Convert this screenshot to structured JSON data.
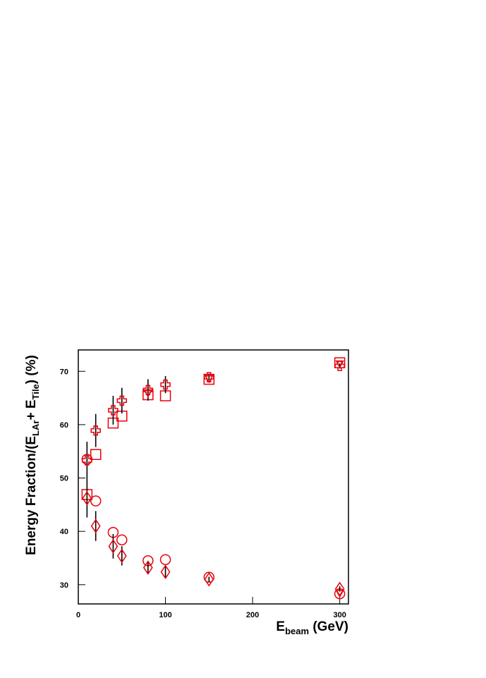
{
  "chart_data": {
    "type": "scatter",
    "xlabel": [
      "E",
      "beam",
      " (GeV)"
    ],
    "ylabel": [
      "Energy Fraction/(E",
      "LAr",
      "+ E",
      "Tile",
      ") (%)"
    ],
    "xlim": [
      0,
      310
    ],
    "ylim": [
      26.4,
      74
    ],
    "xticks": [
      0,
      100,
      200,
      300
    ],
    "yticks": [
      30,
      40,
      50,
      60,
      70
    ],
    "series": [
      {
        "marker": "square",
        "color": "#e8000b",
        "x": [
          10,
          20,
          40,
          50,
          80,
          100,
          150,
          300
        ],
        "values": [
          46.9,
          54.4,
          60.3,
          61.6,
          65.6,
          65.4,
          68.5,
          71.6
        ]
      },
      {
        "marker": "cross",
        "color": "#e8000b",
        "errcolor": "#000000",
        "x": [
          10,
          20,
          40,
          50,
          80,
          100,
          150,
          300
        ],
        "values": [
          53.3,
          58.9,
          62.7,
          64.5,
          66.5,
          67.5,
          68.9,
          71.0
        ],
        "yerr": [
          3.5,
          3.1,
          2.7,
          2.4,
          2.0,
          1.6,
          0.6,
          0.5
        ]
      },
      {
        "marker": "circle",
        "color": "#e8000b",
        "x": [
          10,
          20,
          40,
          50,
          80,
          100,
          150,
          300
        ],
        "values": [
          53.5,
          45.7,
          39.8,
          38.4,
          34.5,
          34.7,
          31.4,
          28.3
        ]
      },
      {
        "marker": "diamond",
        "color": "#e8000b",
        "errcolor": "#000000",
        "x": [
          10,
          20,
          40,
          50,
          80,
          100,
          150,
          300
        ],
        "values": [
          46.2,
          41.0,
          37.2,
          35.4,
          33.2,
          32.4,
          31.0,
          29.2
        ],
        "yerr": [
          3.6,
          2.8,
          2.3,
          1.8,
          1.0,
          1.0,
          0.5,
          0.5
        ]
      },
      {
        "marker": "triangle-down",
        "color": "#e8000b",
        "x": [
          80,
          150,
          300,
          300
        ],
        "values": [
          65.9,
          68.6,
          71.4,
          28.4
        ]
      }
    ]
  }
}
